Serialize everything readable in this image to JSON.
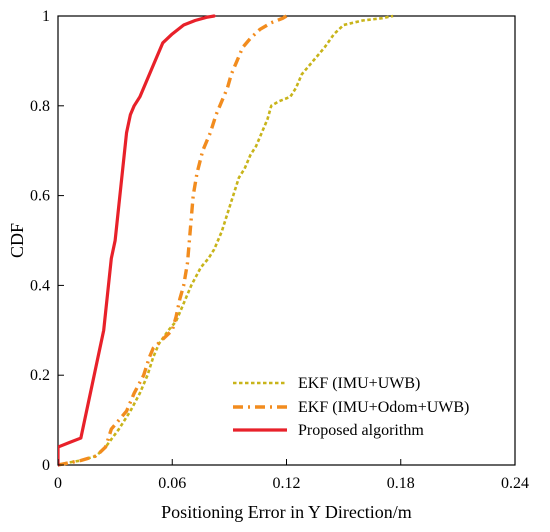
{
  "chart_data": {
    "type": "line",
    "title": "",
    "xlabel": "Positioning Error in Y Direction/m",
    "ylabel": "CDF",
    "xlim": [
      0,
      0.24
    ],
    "ylim": [
      0,
      1
    ],
    "xticks": [
      0,
      0.06,
      0.12,
      0.18,
      0.24
    ],
    "xtick_labels": [
      "0",
      "0.06",
      "0.12",
      "0.18",
      "0.24"
    ],
    "yticks": [
      0,
      0.2,
      0.4,
      0.6,
      0.8,
      1
    ],
    "ytick_labels": [
      "0",
      "0.2",
      "0.4",
      "0.6",
      "0.8",
      "1"
    ],
    "grid": false,
    "legend_position": "bottom-right",
    "series": [
      {
        "name": "EKF (IMU+UWB)",
        "color": "#C8B41A",
        "dash": "dotted",
        "points": [
          [
            0.0,
            0.0
          ],
          [
            0.005,
            0.005
          ],
          [
            0.012,
            0.01
          ],
          [
            0.02,
            0.02
          ],
          [
            0.025,
            0.04
          ],
          [
            0.032,
            0.08
          ],
          [
            0.038,
            0.12
          ],
          [
            0.043,
            0.16
          ],
          [
            0.047,
            0.2
          ],
          [
            0.05,
            0.24
          ],
          [
            0.053,
            0.27
          ],
          [
            0.058,
            0.3
          ],
          [
            0.062,
            0.32
          ],
          [
            0.066,
            0.36
          ],
          [
            0.07,
            0.4
          ],
          [
            0.075,
            0.44
          ],
          [
            0.079,
            0.46
          ],
          [
            0.082,
            0.48
          ],
          [
            0.086,
            0.52
          ],
          [
            0.089,
            0.56
          ],
          [
            0.092,
            0.6
          ],
          [
            0.095,
            0.64
          ],
          [
            0.098,
            0.66
          ],
          [
            0.101,
            0.69
          ],
          [
            0.104,
            0.71
          ],
          [
            0.107,
            0.74
          ],
          [
            0.11,
            0.77
          ],
          [
            0.112,
            0.8
          ],
          [
            0.116,
            0.81
          ],
          [
            0.122,
            0.82
          ],
          [
            0.125,
            0.84
          ],
          [
            0.128,
            0.87
          ],
          [
            0.134,
            0.9
          ],
          [
            0.14,
            0.93
          ],
          [
            0.145,
            0.96
          ],
          [
            0.15,
            0.98
          ],
          [
            0.16,
            0.99
          ],
          [
            0.17,
            0.995
          ],
          [
            0.176,
            1.0
          ]
        ]
      },
      {
        "name": "EKF (IMU+Odom+UWB)",
        "color": "#F28C1E",
        "dash": "dashdot",
        "points": [
          [
            0.0,
            0.0
          ],
          [
            0.006,
            0.005
          ],
          [
            0.012,
            0.01
          ],
          [
            0.02,
            0.02
          ],
          [
            0.025,
            0.04
          ],
          [
            0.028,
            0.08
          ],
          [
            0.032,
            0.1
          ],
          [
            0.036,
            0.12
          ],
          [
            0.04,
            0.16
          ],
          [
            0.045,
            0.2
          ],
          [
            0.048,
            0.24
          ],
          [
            0.05,
            0.26
          ],
          [
            0.055,
            0.28
          ],
          [
            0.06,
            0.3
          ],
          [
            0.062,
            0.33
          ],
          [
            0.064,
            0.37
          ],
          [
            0.066,
            0.4
          ],
          [
            0.068,
            0.45
          ],
          [
            0.069,
            0.5
          ],
          [
            0.07,
            0.55
          ],
          [
            0.071,
            0.6
          ],
          [
            0.073,
            0.65
          ],
          [
            0.076,
            0.7
          ],
          [
            0.08,
            0.74
          ],
          [
            0.083,
            0.78
          ],
          [
            0.086,
            0.81
          ],
          [
            0.089,
            0.84
          ],
          [
            0.091,
            0.87
          ],
          [
            0.094,
            0.9
          ],
          [
            0.097,
            0.93
          ],
          [
            0.101,
            0.95
          ],
          [
            0.106,
            0.97
          ],
          [
            0.112,
            0.985
          ],
          [
            0.118,
            0.995
          ],
          [
            0.12,
            1.0
          ]
        ]
      },
      {
        "name": "Proposed algorithm",
        "color": "#E8212A",
        "dash": "solid",
        "points": [
          [
            0.0,
            0.0
          ],
          [
            0.0,
            0.04
          ],
          [
            0.006,
            0.05
          ],
          [
            0.012,
            0.06
          ],
          [
            0.014,
            0.1
          ],
          [
            0.016,
            0.14
          ],
          [
            0.018,
            0.18
          ],
          [
            0.02,
            0.22
          ],
          [
            0.022,
            0.26
          ],
          [
            0.024,
            0.3
          ],
          [
            0.025,
            0.34
          ],
          [
            0.026,
            0.38
          ],
          [
            0.027,
            0.42
          ],
          [
            0.028,
            0.46
          ],
          [
            0.03,
            0.5
          ],
          [
            0.031,
            0.54
          ],
          [
            0.032,
            0.58
          ],
          [
            0.033,
            0.62
          ],
          [
            0.034,
            0.66
          ],
          [
            0.035,
            0.7
          ],
          [
            0.036,
            0.74
          ],
          [
            0.038,
            0.78
          ],
          [
            0.04,
            0.8
          ],
          [
            0.043,
            0.82
          ],
          [
            0.046,
            0.85
          ],
          [
            0.049,
            0.88
          ],
          [
            0.052,
            0.91
          ],
          [
            0.055,
            0.94
          ],
          [
            0.06,
            0.96
          ],
          [
            0.066,
            0.98
          ],
          [
            0.072,
            0.99
          ],
          [
            0.078,
            0.997
          ],
          [
            0.082,
            1.0
          ]
        ]
      }
    ]
  }
}
